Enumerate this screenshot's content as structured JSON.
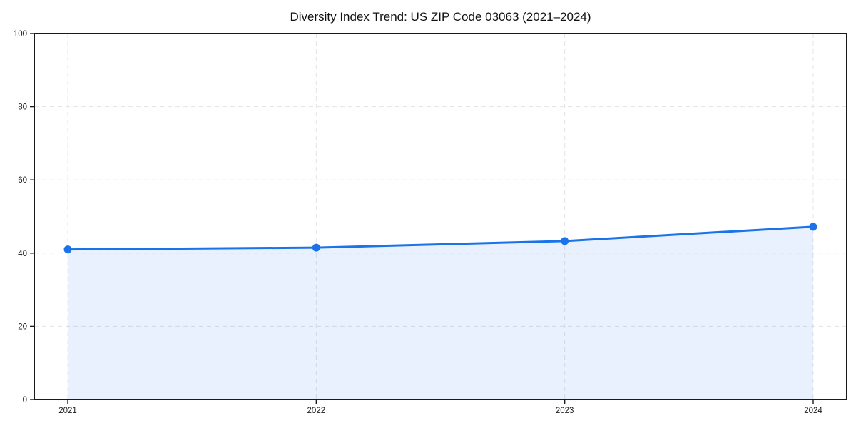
{
  "chart_data": {
    "type": "area",
    "title": "Diversity Index Trend: US ZIP Code 03063 (2021–2024)",
    "series": [
      {
        "name": "Diversity Index",
        "values": [
          41.0,
          41.5,
          43.3,
          47.2
        ]
      }
    ],
    "categories": [
      "2021",
      "2022",
      "2023",
      "2024"
    ],
    "x": [
      2021,
      2022,
      2023,
      2024
    ],
    "xlabel": "",
    "ylabel": "",
    "ylim": [
      0,
      100
    ],
    "yticks": [
      0,
      20,
      40,
      60,
      80,
      100
    ],
    "grid": "dashed both axes",
    "legend_position": "none",
    "colors": {
      "line": "#1a73e8",
      "marker": "#1a73e8",
      "fill": "#1a73e8",
      "fill_opacity": 0.1,
      "gridline": "#e4e4e4",
      "spine": "#1a1a1a",
      "tick_label": "#1a1a1a",
      "background": "#ffffff"
    }
  }
}
